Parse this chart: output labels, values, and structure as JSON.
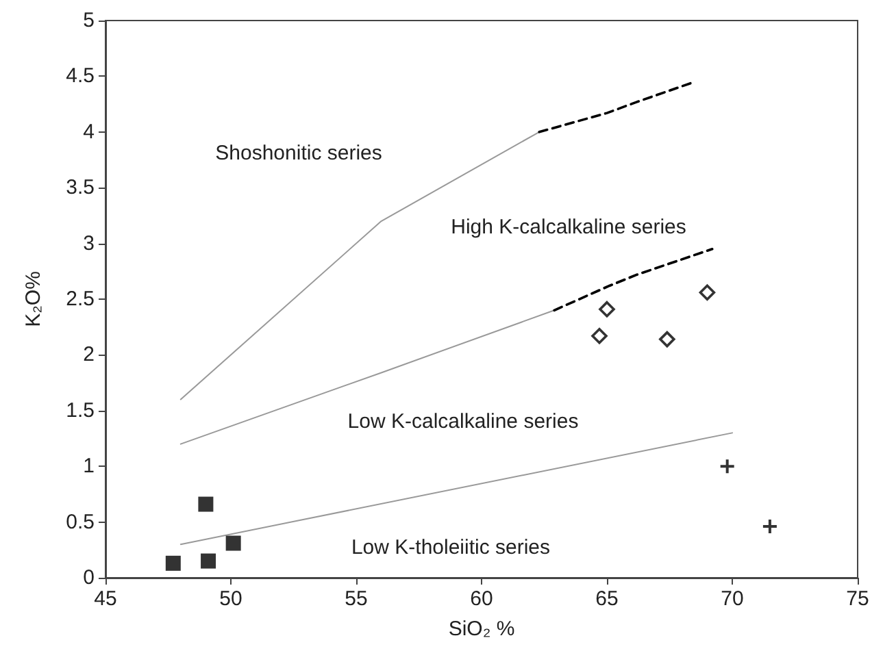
{
  "chart_data": {
    "type": "scatter",
    "xlabel": "SiO₂ %",
    "ylabel": "K₂O%",
    "xlim": [
      45,
      75
    ],
    "xticks": [
      45,
      50,
      55,
      60,
      65,
      70,
      75
    ],
    "ylim": [
      0,
      5
    ],
    "yticks": [
      0,
      0.5,
      1,
      1.5,
      2,
      2.5,
      3,
      3.5,
      4,
      4.5,
      5
    ],
    "grid": false,
    "series": [
      {
        "type": "line",
        "color": "#999999",
        "line_style": "solid",
        "marker": "none",
        "x": [
          48,
          56,
          62.3
        ],
        "values": [
          1.6,
          3.2,
          4.0
        ]
      },
      {
        "type": "line",
        "color": "#000000",
        "line_style": "dashed",
        "marker": "none",
        "x": [
          62.3,
          65,
          66.2,
          68.5
        ],
        "values": [
          4.0,
          4.17,
          4.27,
          4.45
        ]
      },
      {
        "type": "line",
        "color": "#999999",
        "line_style": "solid",
        "marker": "none",
        "x": [
          48,
          56,
          62.9
        ],
        "values": [
          1.2,
          1.84,
          2.4
        ]
      },
      {
        "type": "line",
        "color": "#000000",
        "line_style": "dashed",
        "marker": "none",
        "x": [
          62.9,
          65.1,
          66.2,
          69.2
        ],
        "values": [
          2.4,
          2.62,
          2.72,
          2.95
        ]
      },
      {
        "type": "line",
        "color": "#999999",
        "line_style": "solid",
        "marker": "none",
        "x": [
          48,
          70
        ],
        "values": [
          0.3,
          1.3
        ]
      },
      {
        "color": "#000000",
        "marker": "square",
        "x": [
          47.7,
          49.0,
          49.1,
          50.1
        ],
        "values": [
          0.13,
          0.66,
          0.15,
          0.31
        ]
      },
      {
        "color": "#000000",
        "marker": "diamond",
        "x": [
          64.7,
          65.0,
          67.4,
          69.0
        ],
        "values": [
          2.17,
          2.41,
          2.14,
          2.56
        ]
      },
      {
        "color": "#000000",
        "marker": "cross",
        "x": [
          69.8,
          71.5
        ],
        "values": [
          1.0,
          0.46
        ]
      }
    ],
    "annotations": [
      "Shoshonitic series",
      "High K-calcalkaline series",
      "Low K-calcalkaline series",
      "Low K-tholeiitic series"
    ]
  }
}
